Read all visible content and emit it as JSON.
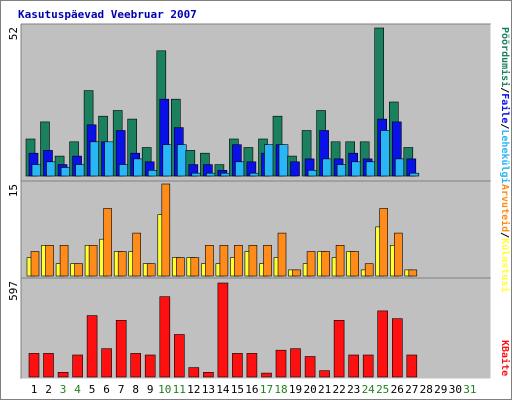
{
  "title": "Kasutuspäevad Veebruar 2007",
  "colors": {
    "background": "#c0c0c0",
    "pohg": "#1a8060",
    "faile": "#0a10e8",
    "lehekulgi": "#29b6f6",
    "kulastusi": "#ffff33",
    "arvuteid": "#ff8c1a",
    "kbaite": "#ff1010",
    "weekday_label": "#000000",
    "weekend_label": "#208020"
  },
  "legend": {
    "top": [
      {
        "text": "Pöördumisi",
        "color": "#1a8060"
      },
      {
        "text": "Faile",
        "color": "#0a10e8"
      },
      {
        "text": "Lehekülgi",
        "color": "#29b6f6"
      }
    ],
    "middle": [
      {
        "text": "Külastusi",
        "color": "#ffff33"
      },
      {
        "text": "Arvuteid",
        "color": "#ff8c1a"
      }
    ],
    "bottom": [
      {
        "text": "KBaite",
        "color": "#ff1010"
      }
    ]
  },
  "chart_data": {
    "type": "bar",
    "title": "Kasutuspäevad Veebruar 2007",
    "categories": [
      "1",
      "2",
      "3",
      "4",
      "5",
      "6",
      "7",
      "8",
      "9",
      "10",
      "11",
      "12",
      "13",
      "14",
      "15",
      "16",
      "17",
      "18",
      "19",
      "20",
      "21",
      "22",
      "23",
      "24",
      "25",
      "26",
      "27",
      "28",
      "29",
      "30",
      "31"
    ],
    "weekend_days": [
      "3",
      "4",
      "10",
      "11",
      "17",
      "18",
      "24",
      "25",
      "31"
    ],
    "panels": [
      {
        "name": "top",
        "ymax_label": "52",
        "ylim": [
          0,
          52
        ],
        "series": [
          {
            "name": "Pöördumisi",
            "values": [
              13,
              19,
              7,
              12,
              30,
              21,
              23,
              20,
              10,
              44,
              27,
              9,
              8,
              4,
              13,
              10,
              13,
              21,
              7,
              16,
              23,
              12,
              12,
              12,
              52,
              26,
              10,
              null,
              null,
              null,
              null
            ]
          },
          {
            "name": "Faile",
            "values": [
              8,
              9,
              4,
              7,
              18,
              12,
              16,
              8,
              5,
              27,
              17,
              4,
              4,
              2,
              11,
              5,
              8,
              11,
              5,
              6,
              16,
              6,
              8,
              6,
              20,
              19,
              6,
              null,
              null,
              null,
              null
            ]
          },
          {
            "name": "Lehekülgi",
            "values": [
              4,
              5,
              3,
              4,
              12,
              12,
              4,
              6,
              2,
              11,
              11,
              1,
              1,
              1,
              5,
              1,
              11,
              11,
              0,
              2,
              6,
              4,
              5,
              5,
              16,
              6,
              1,
              null,
              null,
              null,
              null
            ]
          }
        ]
      },
      {
        "name": "middle",
        "ymax_label": "15",
        "ylim": [
          0,
          15
        ],
        "series": [
          {
            "name": "Külastusi",
            "values": [
              3,
              5,
              2,
              2,
              5,
              6,
              4,
              4,
              2,
              10,
              3,
              3,
              2,
              2,
              3,
              4,
              2,
              3,
              1,
              2,
              4,
              3,
              4,
              1,
              8,
              5,
              1,
              null,
              null,
              null,
              null
            ]
          },
          {
            "name": "Arvuteid",
            "values": [
              4,
              5,
              5,
              2,
              5,
              11,
              4,
              7,
              2,
              15,
              3,
              3,
              5,
              5,
              5,
              5,
              5,
              7,
              1,
              4,
              4,
              5,
              4,
              2,
              11,
              7,
              1,
              null,
              null,
              null,
              null
            ]
          }
        ]
      },
      {
        "name": "bottom",
        "ymax_label": "597",
        "ylim": [
          0,
          597
        ],
        "series": [
          {
            "name": "KBaite",
            "values": [
              150,
              150,
              30,
              140,
              390,
              180,
              360,
              150,
              140,
              510,
              270,
              60,
              30,
              597,
              150,
              150,
              25,
              170,
              180,
              130,
              40,
              360,
              140,
              140,
              420,
              370,
              140,
              null,
              null,
              null,
              null
            ]
          }
        ]
      }
    ]
  }
}
